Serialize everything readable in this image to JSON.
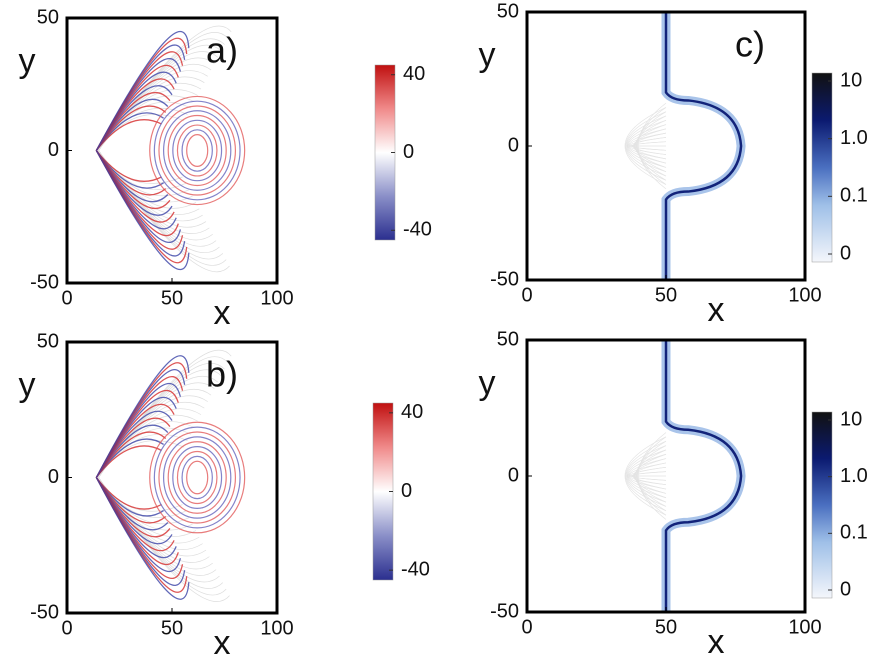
{
  "chart_data": [
    {
      "type": "field",
      "label": "a)",
      "xlabel": "x",
      "ylabel": "y",
      "xlim": [
        0,
        100
      ],
      "ylim": [
        -50,
        50
      ],
      "xticks": [
        0,
        50,
        100
      ],
      "yticks": [
        -50,
        0,
        50
      ],
      "colorbar": {
        "lim": [
          -45,
          45
        ],
        "ticks": [
          -40,
          0,
          40
        ]
      }
    },
    {
      "type": "field",
      "label": "b)",
      "xlabel": "x",
      "ylabel": "y",
      "xlim": [
        0,
        100
      ],
      "ylim": [
        -50,
        50
      ],
      "xticks": [
        0,
        50,
        100
      ],
      "yticks": [
        -50,
        0,
        50
      ],
      "colorbar": {
        "lim": [
          -45,
          45
        ],
        "ticks": [
          -40,
          0,
          40
        ]
      }
    },
    {
      "type": "density",
      "label": "c)",
      "xlabel": "x",
      "ylabel": "y",
      "xlim": [
        0,
        100
      ],
      "ylim": [
        -50,
        50
      ],
      "xticks": [
        0,
        50,
        100
      ],
      "yticks": [
        -50,
        0,
        50
      ],
      "colorbar": {
        "ticks": [
          0,
          0.1,
          {
            "value": 1,
            "label": "1.0"
          },
          10
        ]
      }
    },
    {
      "type": "density",
      "xlabel": "x",
      "ylabel": "y",
      "xlim": [
        0,
        100
      ],
      "ylim": [
        -50,
        50
      ],
      "xticks": [
        0,
        50,
        100
      ],
      "yticks": [
        -50,
        0,
        50
      ],
      "colorbar": {
        "ticks": [
          0,
          0.1,
          {
            "value": 1,
            "label": "1.0"
          },
          10
        ]
      }
    }
  ]
}
